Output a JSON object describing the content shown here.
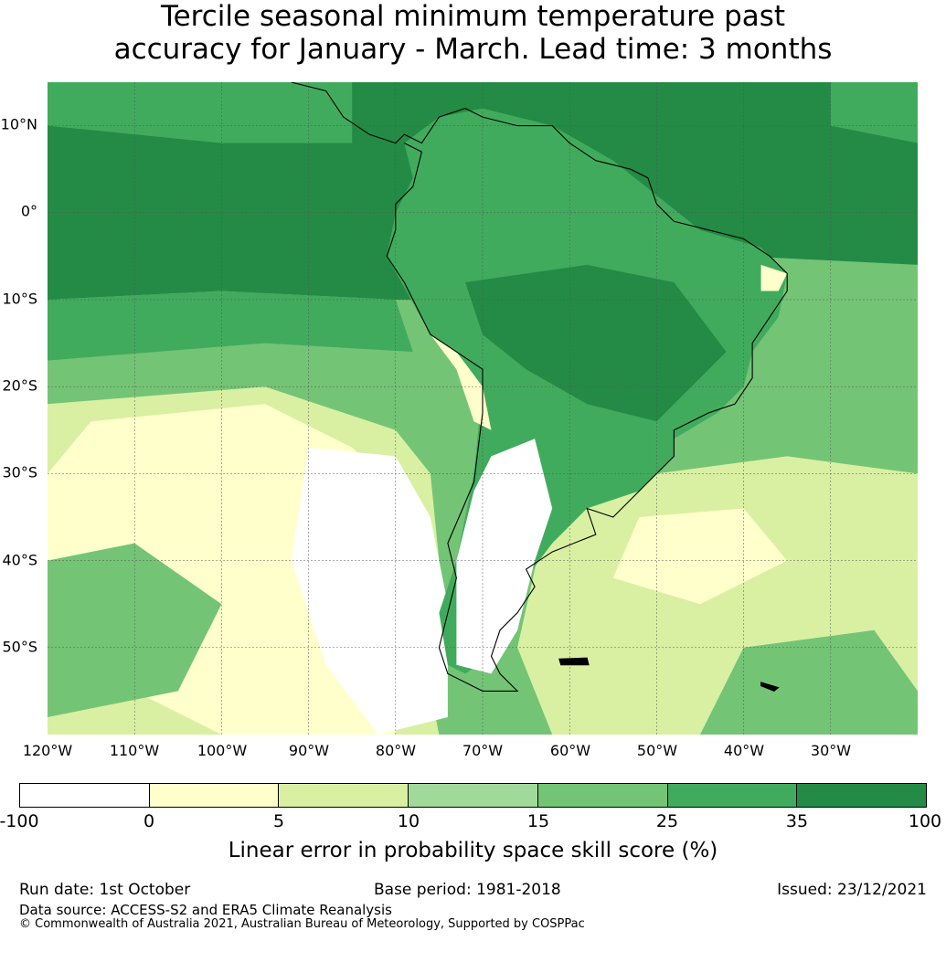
{
  "title": {
    "line1": "Tercile seasonal minimum temperature past",
    "line2": "accuracy for January - March. Lead time: 3 months"
  },
  "map": {
    "lat_labels": [
      "10°N",
      "0°",
      "10°S",
      "20°S",
      "30°S",
      "40°S",
      "50°S"
    ],
    "lon_labels": [
      "120°W",
      "110°W",
      "100°W",
      "90°W",
      "80°W",
      "70°W",
      "60°W",
      "50°W",
      "40°W",
      "30°W"
    ],
    "colors": {
      "ocean_deep": "#238b45",
      "mid_green": "#41ab5d",
      "light_green": "#74c476",
      "pale_green": "#a1d99b",
      "yellow_green": "#d9f0a3",
      "pale_yellow": "#ffffcc",
      "white": "#ffffff",
      "coast": "#000000"
    }
  },
  "colorbar": {
    "colors": [
      "#ffffff",
      "#ffffcc",
      "#d9f0a3",
      "#a1d99b",
      "#74c476",
      "#41ab5d",
      "#238b45"
    ],
    "ticks": [
      "-100",
      "0",
      "5",
      "10",
      "15",
      "25",
      "35",
      "100"
    ],
    "label": "Linear error in probability space skill score (%)"
  },
  "footer": {
    "run_date": "Run date: 1st October",
    "base_period": "Base period: 1981-2018",
    "issued": "Issued: 23/12/2021",
    "data_source": "Data source: ACCESS-S2 and ERA5 Climate Reanalysis",
    "copyright": "© Commonwealth of Australia 2021, Australian Bureau of Meteorology, Supported by COSPPac"
  }
}
